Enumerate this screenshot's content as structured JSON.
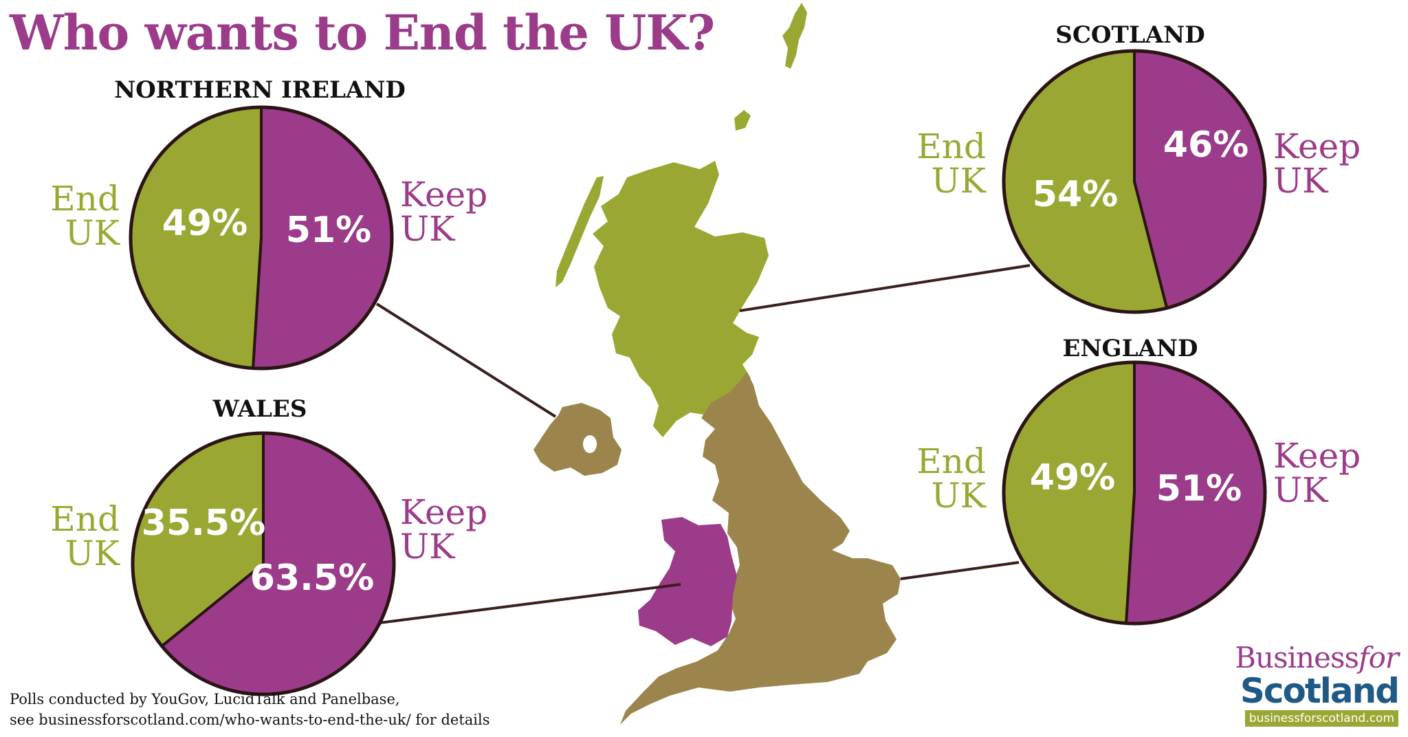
{
  "title": "Who wants to End the UK?",
  "footnote": {
    "line1": "Polls conducted by YouGov, LucidTalk and Panelbase,",
    "line2": "see businessforscotland.com/who-wants-to-end-the-uk/ for details"
  },
  "logo": {
    "business": "Business",
    "for": "for",
    "scotland": "Scotland",
    "url": "businessforscotland.com"
  },
  "colors": {
    "end_uk": "#9aa833",
    "keep_uk": "#9b3b8a",
    "england_ni": "#9b854d",
    "wales": "#9b3b8a",
    "scotland": "#9aa833",
    "connector": "#3a1f1f",
    "title": "#9b3b8a"
  },
  "chart_data": [
    {
      "type": "pie",
      "title": "NORTHERN IRELAND",
      "labels": [
        "End UK",
        "Keep UK"
      ],
      "values": [
        49,
        51
      ],
      "value_labels": [
        "49%",
        "51%"
      ],
      "legend": {
        "end": [
          "End",
          "UK"
        ],
        "keep": [
          "Keep",
          "UK"
        ]
      }
    },
    {
      "type": "pie",
      "title": "WALES",
      "labels": [
        "End UK",
        "Keep UK"
      ],
      "values": [
        35.5,
        63.5
      ],
      "value_labels": [
        "35.5%",
        "63.5%"
      ],
      "legend": {
        "end": [
          "End",
          "UK"
        ],
        "keep": [
          "Keep",
          "UK"
        ]
      }
    },
    {
      "type": "pie",
      "title": "SCOTLAND",
      "labels": [
        "End UK",
        "Keep UK"
      ],
      "values": [
        54,
        46
      ],
      "value_labels": [
        "54%",
        "46%"
      ],
      "legend": {
        "end": [
          "End",
          "UK"
        ],
        "keep": [
          "Keep",
          "UK"
        ]
      }
    },
    {
      "type": "pie",
      "title": "ENGLAND",
      "labels": [
        "End UK",
        "Keep UK"
      ],
      "values": [
        49,
        51
      ],
      "value_labels": [
        "49%",
        "51%"
      ],
      "legend": {
        "end": [
          "End",
          "UK"
        ],
        "keep": [
          "Keep",
          "UK"
        ]
      }
    }
  ]
}
